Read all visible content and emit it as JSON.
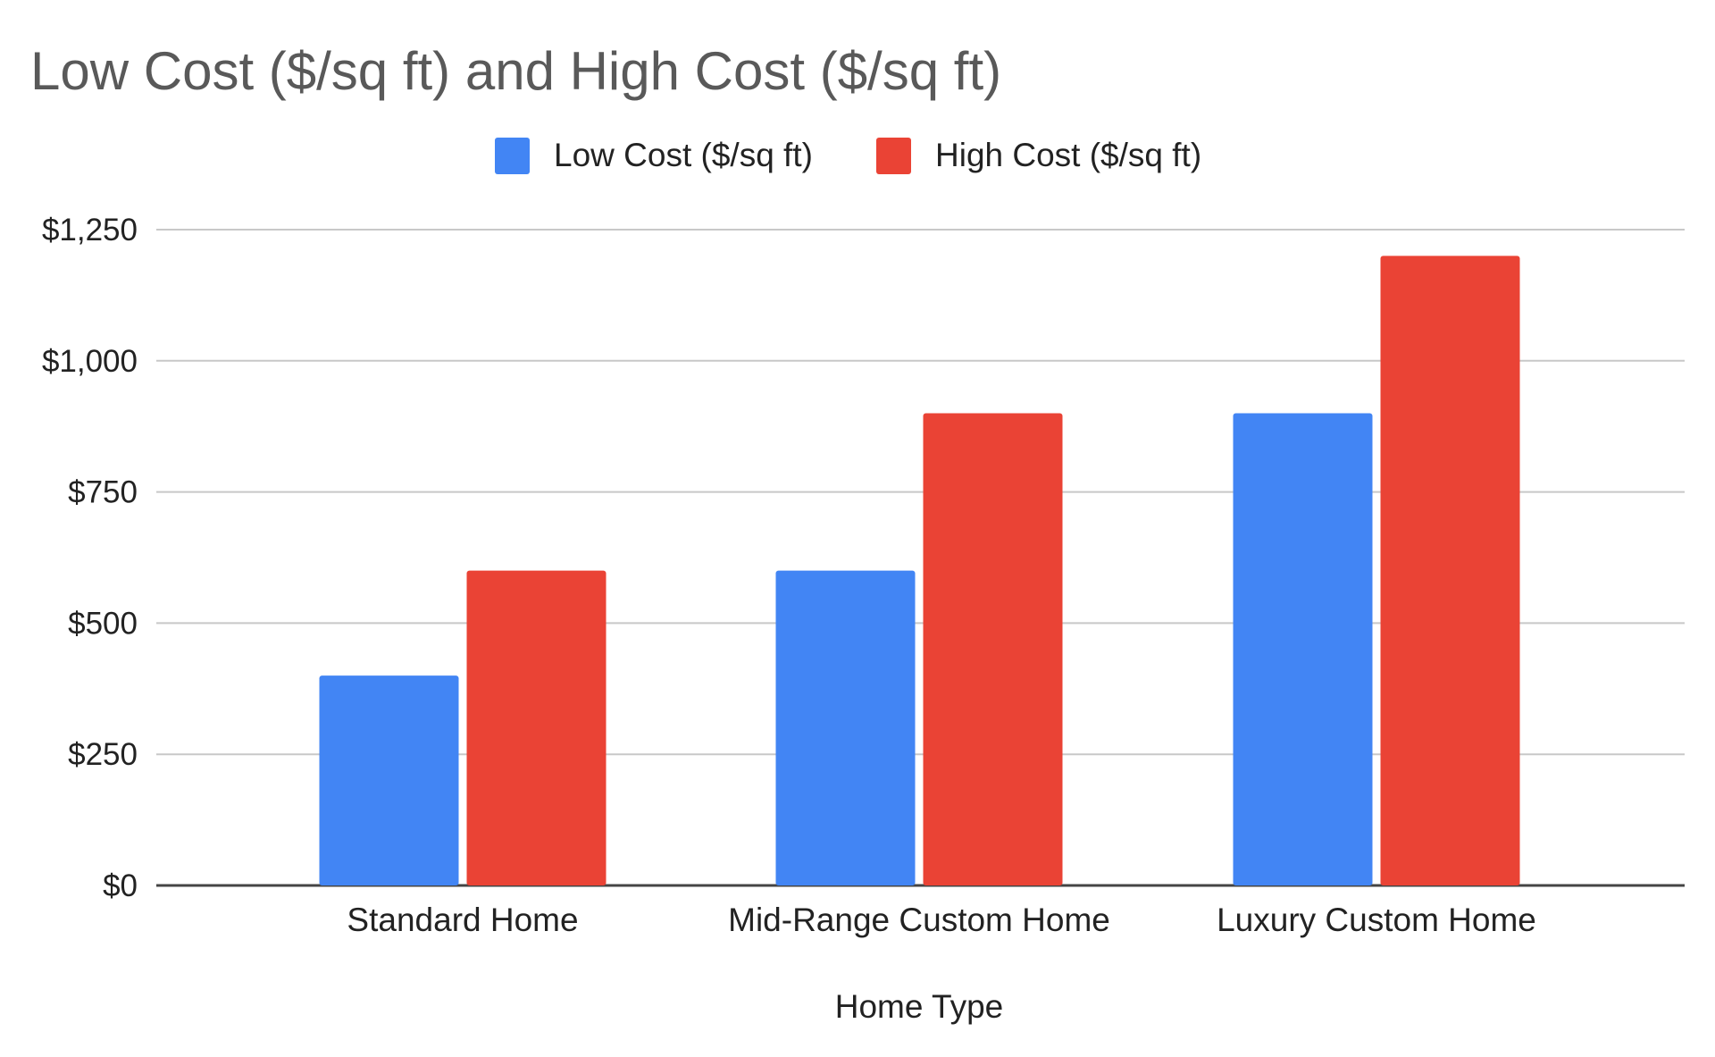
{
  "chart_data": {
    "type": "bar",
    "title": "Low Cost ($/sq ft) and High Cost ($/sq ft)",
    "xlabel": "Home Type",
    "ylabel": "",
    "categories": [
      "Standard Home",
      "Mid-Range Custom Home",
      "Luxury Custom Home"
    ],
    "series": [
      {
        "name": "Low Cost ($/sq ft)",
        "color": "#4285F4",
        "values": [
          400,
          600,
          900
        ]
      },
      {
        "name": "High Cost ($/sq ft)",
        "color": "#EA4335",
        "values": [
          600,
          900,
          1200
        ]
      }
    ],
    "ylim": [
      0,
      1250
    ],
    "yticks": [
      0,
      250,
      500,
      750,
      1000,
      1250
    ],
    "ytick_labels": [
      "$0",
      "$250",
      "$500",
      "$750",
      "$1,000",
      "$1,250"
    ],
    "grid": true,
    "legend_position": "top"
  }
}
